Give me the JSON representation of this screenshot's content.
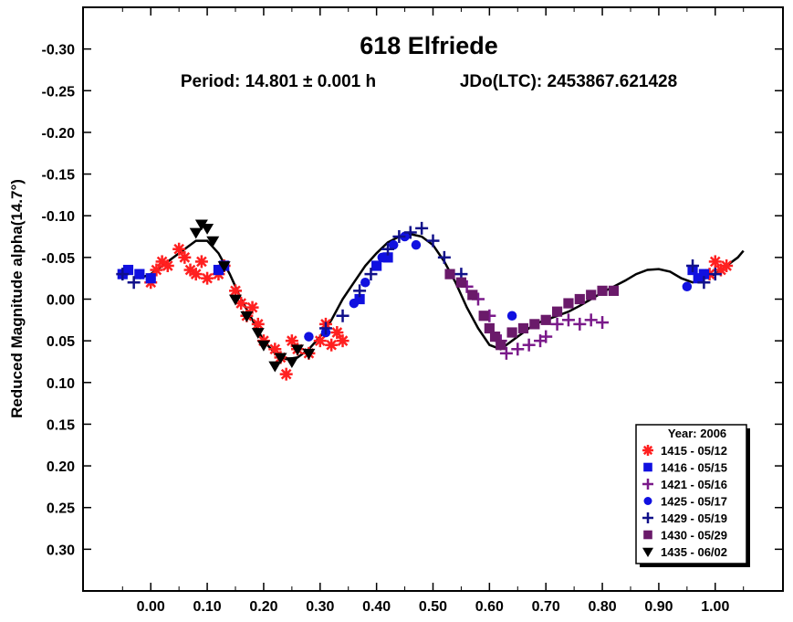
{
  "chart_data": {
    "type": "scatter",
    "title": "618 Elfriede",
    "subtitle_period": "Period: 14.801 ± 0.001 h",
    "subtitle_epoch": "JDo(LTC): 2453867.621428",
    "xlabel": "",
    "ylabel": "Reduced Magnitude alpha(14.7°)",
    "xlim": [
      -0.12,
      1.12
    ],
    "ylim": [
      -0.35,
      0.35
    ],
    "y_inverted": true,
    "x_ticks": [
      "0.00",
      "0.10",
      "0.20",
      "0.30",
      "0.40",
      "0.50",
      "0.60",
      "0.70",
      "0.80",
      "0.90",
      "1.00"
    ],
    "x_tick_values": [
      0,
      0.1,
      0.2,
      0.3,
      0.4,
      0.5,
      0.6,
      0.7,
      0.8,
      0.9,
      1.0
    ],
    "y_ticks": [
      "-0.30",
      "-0.25",
      "-0.20",
      "-0.15",
      "-0.10",
      "-0.05",
      "0.00",
      "0.05",
      "0.10",
      "0.15",
      "0.20",
      "0.25",
      "0.30"
    ],
    "y_tick_values": [
      -0.3,
      -0.25,
      -0.2,
      -0.15,
      -0.1,
      -0.05,
      0.0,
      0.05,
      0.1,
      0.15,
      0.2,
      0.25,
      0.3
    ],
    "grid": false,
    "legend": {
      "title": "Year: 2006",
      "position": "bottom-right",
      "entries": [
        {
          "label": "1415 - 05/12",
          "marker": "asterisk",
          "color": "#ff2020"
        },
        {
          "label": "1416 - 05/15",
          "marker": "square",
          "color": "#1010e0"
        },
        {
          "label": "1421 - 05/16",
          "marker": "plus",
          "color": "#7a1a8a"
        },
        {
          "label": "1425 - 05/17",
          "marker": "circle",
          "color": "#1010e0"
        },
        {
          "label": "1429 - 05/19",
          "marker": "plus",
          "color": "#10108a"
        },
        {
          "label": "1430 - 05/29",
          "marker": "square",
          "color": "#6a1a6a"
        },
        {
          "label": "1435 - 06/02",
          "marker": "triangle-down",
          "color": "#000000"
        }
      ]
    },
    "fit_curve": {
      "x": [
        -0.02,
        0.0,
        0.02,
        0.04,
        0.06,
        0.08,
        0.1,
        0.12,
        0.14,
        0.16,
        0.18,
        0.2,
        0.22,
        0.24,
        0.26,
        0.28,
        0.3,
        0.32,
        0.34,
        0.36,
        0.38,
        0.4,
        0.42,
        0.44,
        0.46,
        0.48,
        0.5,
        0.52,
        0.54,
        0.56,
        0.58,
        0.6,
        0.62,
        0.64,
        0.66,
        0.68,
        0.7,
        0.72,
        0.74,
        0.76,
        0.78,
        0.8,
        0.82,
        0.84,
        0.86,
        0.88,
        0.9,
        0.92,
        0.94,
        0.96,
        0.98,
        1.0,
        1.02,
        1.04,
        1.05
      ],
      "y": [
        -0.025,
        -0.03,
        -0.04,
        -0.05,
        -0.06,
        -0.07,
        -0.07,
        -0.055,
        -0.03,
        0.0,
        0.025,
        0.05,
        0.065,
        0.072,
        0.07,
        0.06,
        0.045,
        0.025,
        0.0,
        -0.02,
        -0.04,
        -0.055,
        -0.068,
        -0.075,
        -0.078,
        -0.075,
        -0.065,
        -0.045,
        -0.02,
        0.01,
        0.035,
        0.055,
        0.06,
        0.05,
        0.04,
        0.03,
        0.025,
        0.02,
        0.015,
        0.008,
        0.0,
        -0.008,
        -0.015,
        -0.022,
        -0.03,
        -0.035,
        -0.036,
        -0.033,
        -0.025,
        -0.02,
        -0.025,
        -0.03,
        -0.04,
        -0.05,
        -0.058
      ]
    },
    "series": [
      {
        "name": "1415 - 05/12",
        "marker": "asterisk",
        "color": "#ff2020",
        "points": [
          [
            0.0,
            -0.02
          ],
          [
            0.01,
            -0.035
          ],
          [
            0.02,
            -0.045
          ],
          [
            0.03,
            -0.04
          ],
          [
            0.05,
            -0.06
          ],
          [
            0.06,
            -0.05
          ],
          [
            0.07,
            -0.035
          ],
          [
            0.08,
            -0.03
          ],
          [
            0.09,
            -0.045
          ],
          [
            0.1,
            -0.025
          ],
          [
            0.12,
            -0.03
          ],
          [
            0.13,
            -0.04
          ],
          [
            0.15,
            -0.01
          ],
          [
            0.16,
            0.005
          ],
          [
            0.17,
            0.02
          ],
          [
            0.18,
            0.01
          ],
          [
            0.19,
            0.03
          ],
          [
            0.2,
            0.05
          ],
          [
            0.22,
            0.06
          ],
          [
            0.23,
            0.07
          ],
          [
            0.24,
            0.09
          ],
          [
            0.25,
            0.05
          ],
          [
            0.26,
            0.06
          ],
          [
            0.28,
            0.065
          ],
          [
            0.3,
            0.05
          ],
          [
            0.31,
            0.03
          ],
          [
            0.32,
            0.055
          ],
          [
            0.33,
            0.04
          ],
          [
            0.34,
            0.05
          ],
          [
            0.99,
            -0.03
          ],
          [
            1.0,
            -0.045
          ],
          [
            1.01,
            -0.035
          ],
          [
            1.02,
            -0.04
          ]
        ]
      },
      {
        "name": "1416 - 05/15",
        "marker": "square",
        "color": "#1010e0",
        "points": [
          [
            -0.05,
            -0.03
          ],
          [
            -0.04,
            -0.035
          ],
          [
            -0.02,
            -0.03
          ],
          [
            0.0,
            -0.025
          ],
          [
            0.12,
            -0.035
          ],
          [
            0.13,
            -0.04
          ],
          [
            0.37,
            0.0
          ],
          [
            0.4,
            -0.04
          ],
          [
            0.42,
            -0.05
          ],
          [
            0.96,
            -0.035
          ],
          [
            0.97,
            -0.025
          ],
          [
            0.98,
            -0.03
          ]
        ]
      },
      {
        "name": "1421 - 05/16",
        "marker": "plus",
        "color": "#7a1a8a",
        "points": [
          [
            0.56,
            -0.015
          ],
          [
            0.58,
            0.0
          ],
          [
            0.6,
            0.02
          ],
          [
            0.62,
            0.05
          ],
          [
            0.63,
            0.065
          ],
          [
            0.65,
            0.06
          ],
          [
            0.67,
            0.055
          ],
          [
            0.69,
            0.05
          ],
          [
            0.7,
            0.045
          ],
          [
            0.72,
            0.03
          ],
          [
            0.74,
            0.025
          ],
          [
            0.76,
            0.03
          ],
          [
            0.78,
            0.025
          ],
          [
            0.8,
            0.028
          ]
        ]
      },
      {
        "name": "1425 - 05/17",
        "marker": "circle",
        "color": "#1010e0",
        "points": [
          [
            0.0,
            -0.025
          ],
          [
            0.12,
            -0.035
          ],
          [
            0.28,
            0.045
          ],
          [
            0.31,
            0.04
          ],
          [
            0.36,
            0.005
          ],
          [
            0.38,
            -0.02
          ],
          [
            0.41,
            -0.05
          ],
          [
            0.43,
            -0.065
          ],
          [
            0.45,
            -0.075
          ],
          [
            0.47,
            -0.065
          ],
          [
            0.64,
            0.02
          ],
          [
            0.95,
            -0.015
          ]
        ]
      },
      {
        "name": "1429 - 05/19",
        "marker": "plus",
        "color": "#10108a",
        "points": [
          [
            -0.05,
            -0.03
          ],
          [
            -0.03,
            -0.02
          ],
          [
            0.31,
            0.035
          ],
          [
            0.34,
            0.02
          ],
          [
            0.37,
            -0.01
          ],
          [
            0.39,
            -0.03
          ],
          [
            0.42,
            -0.06
          ],
          [
            0.44,
            -0.075
          ],
          [
            0.46,
            -0.08
          ],
          [
            0.48,
            -0.085
          ],
          [
            0.5,
            -0.07
          ],
          [
            0.52,
            -0.05
          ],
          [
            0.55,
            -0.03
          ],
          [
            0.96,
            -0.04
          ],
          [
            0.98,
            -0.02
          ],
          [
            1.0,
            -0.03
          ]
        ]
      },
      {
        "name": "1430 - 05/29",
        "marker": "square",
        "color": "#6a1a6a",
        "points": [
          [
            0.53,
            -0.03
          ],
          [
            0.55,
            -0.02
          ],
          [
            0.57,
            -0.005
          ],
          [
            0.59,
            0.02
          ],
          [
            0.6,
            0.035
          ],
          [
            0.61,
            0.045
          ],
          [
            0.62,
            0.055
          ],
          [
            0.64,
            0.04
          ],
          [
            0.66,
            0.035
          ],
          [
            0.68,
            0.03
          ],
          [
            0.7,
            0.025
          ],
          [
            0.72,
            0.015
          ],
          [
            0.74,
            0.005
          ],
          [
            0.76,
            0.0
          ],
          [
            0.78,
            -0.005
          ],
          [
            0.8,
            -0.01
          ],
          [
            0.82,
            -0.01
          ]
        ]
      },
      {
        "name": "1435 - 06/02",
        "marker": "triangle-down",
        "color": "#000000",
        "points": [
          [
            0.08,
            -0.08
          ],
          [
            0.09,
            -0.09
          ],
          [
            0.1,
            -0.085
          ],
          [
            0.11,
            -0.07
          ],
          [
            0.13,
            -0.04
          ],
          [
            0.15,
            0.0
          ],
          [
            0.17,
            0.02
          ],
          [
            0.19,
            0.04
          ],
          [
            0.2,
            0.055
          ],
          [
            0.22,
            0.08
          ],
          [
            0.23,
            0.07
          ],
          [
            0.25,
            0.075
          ],
          [
            0.26,
            0.06
          ],
          [
            0.28,
            0.065
          ]
        ]
      }
    ]
  }
}
